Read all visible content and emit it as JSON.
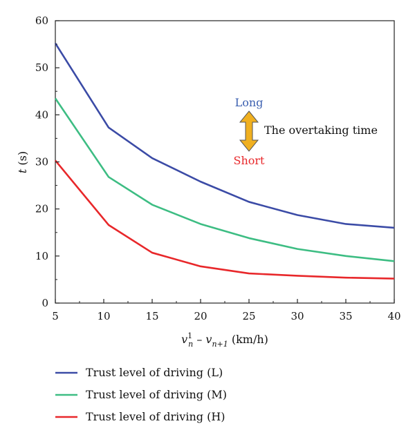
{
  "chart_data": {
    "type": "line",
    "x": [
      5,
      10.5,
      15,
      20,
      25,
      30,
      35,
      40
    ],
    "xlim": [
      5,
      40
    ],
    "ylim": [
      0,
      60
    ],
    "xticks": [
      5,
      10,
      15,
      20,
      25,
      30,
      35,
      40
    ],
    "yticks": [
      0,
      10,
      20,
      30,
      40,
      50,
      60
    ],
    "xlabel": {
      "v": "v",
      "sup": "1",
      "sub1": "n",
      "minus": " – ",
      "v2": "v",
      "sub2": "n+1",
      "unit": " (km/h)"
    },
    "ylabel": {
      "var": "t",
      "unit": " (s)"
    },
    "grid": false,
    "legend_position": "bottom",
    "series": [
      {
        "name": "Trust level of driving (L)",
        "color": "#3b4ba6",
        "values": [
          55.2,
          37.3,
          30.8,
          25.8,
          21.5,
          18.7,
          16.8,
          16.0
        ]
      },
      {
        "name": "Trust level of driving (M)",
        "color": "#3dbd83",
        "values": [
          43.5,
          26.8,
          20.9,
          16.8,
          13.8,
          11.5,
          10.0,
          8.9
        ]
      },
      {
        "name": "Trust level of driving (H)",
        "color": "#e8272a",
        "values": [
          30.3,
          16.6,
          10.7,
          7.8,
          6.3,
          5.8,
          5.4,
          5.2
        ]
      }
    ],
    "annotation": {
      "long": "Long",
      "long_color": "#3b5fb0",
      "short": "Short",
      "short_color": "#e8272a",
      "text": "The overtaking time",
      "arrow_color": "#f0b020"
    }
  }
}
